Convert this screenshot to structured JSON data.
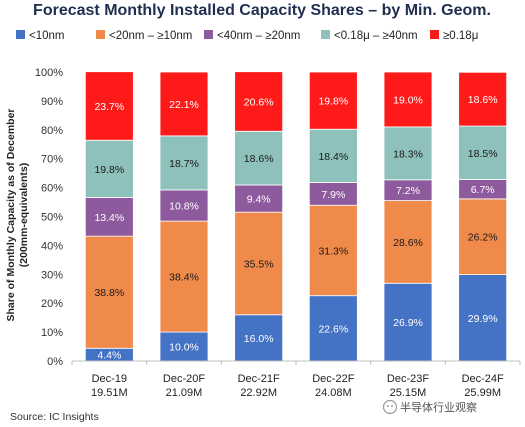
{
  "chart_data": {
    "type": "bar",
    "stacked": true,
    "title": "Forecast Monthly Installed Capacity Shares – by Min. Geom.",
    "ylabel_lines": [
      "Share of Monthly Capacity as of December",
      "(200mm-equivalents)"
    ],
    "xlabel": "",
    "ylim": [
      0,
      100
    ],
    "yticks": [
      "0%",
      "10%",
      "20%",
      "30%",
      "40%",
      "50%",
      "60%",
      "70%",
      "80%",
      "90%",
      "100%"
    ],
    "grid": false,
    "legend_position": "top",
    "categories": [
      "Dec-19",
      "Dec-20F",
      "Dec-21F",
      "Dec-22F",
      "Dec-23F",
      "Dec-24F"
    ],
    "category_sublabels": [
      "19.51M",
      "21.09M",
      "22.92M",
      "24.08M",
      "25.15M",
      "25.99M"
    ],
    "series": [
      {
        "name": "<10nm",
        "color": "#4472c4",
        "label_color": "#ffffff",
        "values": [
          4.4,
          10.0,
          16.0,
          22.6,
          26.9,
          29.9
        ],
        "labels": [
          "4.4%",
          "10.0%",
          "16.0%",
          "22.6%",
          "26.9%",
          "29.9%"
        ]
      },
      {
        "name": "<20nm – ≥10nm",
        "color": "#f08a4b",
        "label_color": "#1a1a1a",
        "values": [
          38.8,
          38.4,
          35.5,
          31.3,
          28.6,
          26.2
        ],
        "labels": [
          "38.8%",
          "38.4%",
          "35.5%",
          "31.3%",
          "28.6%",
          "26.2%"
        ]
      },
      {
        "name": "<40nm – ≥20nm",
        "color": "#8e5a9e",
        "label_color": "#ffffff",
        "values": [
          13.4,
          10.8,
          9.4,
          7.9,
          7.2,
          6.7
        ],
        "labels": [
          "13.4%",
          "10.8%",
          "9.4%",
          "7.9%",
          "7.2%",
          "6.7%"
        ]
      },
      {
        "name": "<0.18μ – ≥40nm",
        "color": "#8fc1bc",
        "label_color": "#1a1a1a",
        "values": [
          19.8,
          18.7,
          18.6,
          18.4,
          18.3,
          18.5
        ],
        "labels": [
          "19.8%",
          "18.7%",
          "18.6%",
          "18.4%",
          "18.3%",
          "18.5%"
        ]
      },
      {
        "name": "≥0.18μ",
        "color": "#ff1a1a",
        "label_color": "#ffffff",
        "values": [
          23.7,
          22.1,
          20.6,
          19.8,
          19.0,
          18.6
        ],
        "labels": [
          "23.7%",
          "22.1%",
          "20.6%",
          "19.8%",
          "19.0%",
          "18.6%"
        ]
      }
    ]
  },
  "source": "Source:  IC Insights",
  "watermark": "半导体行业观察",
  "colors": {
    "title": "#1f2f4f",
    "axis": "#bfbfbf"
  },
  "icons": {
    "watermark": "wechat-logo-icon"
  }
}
